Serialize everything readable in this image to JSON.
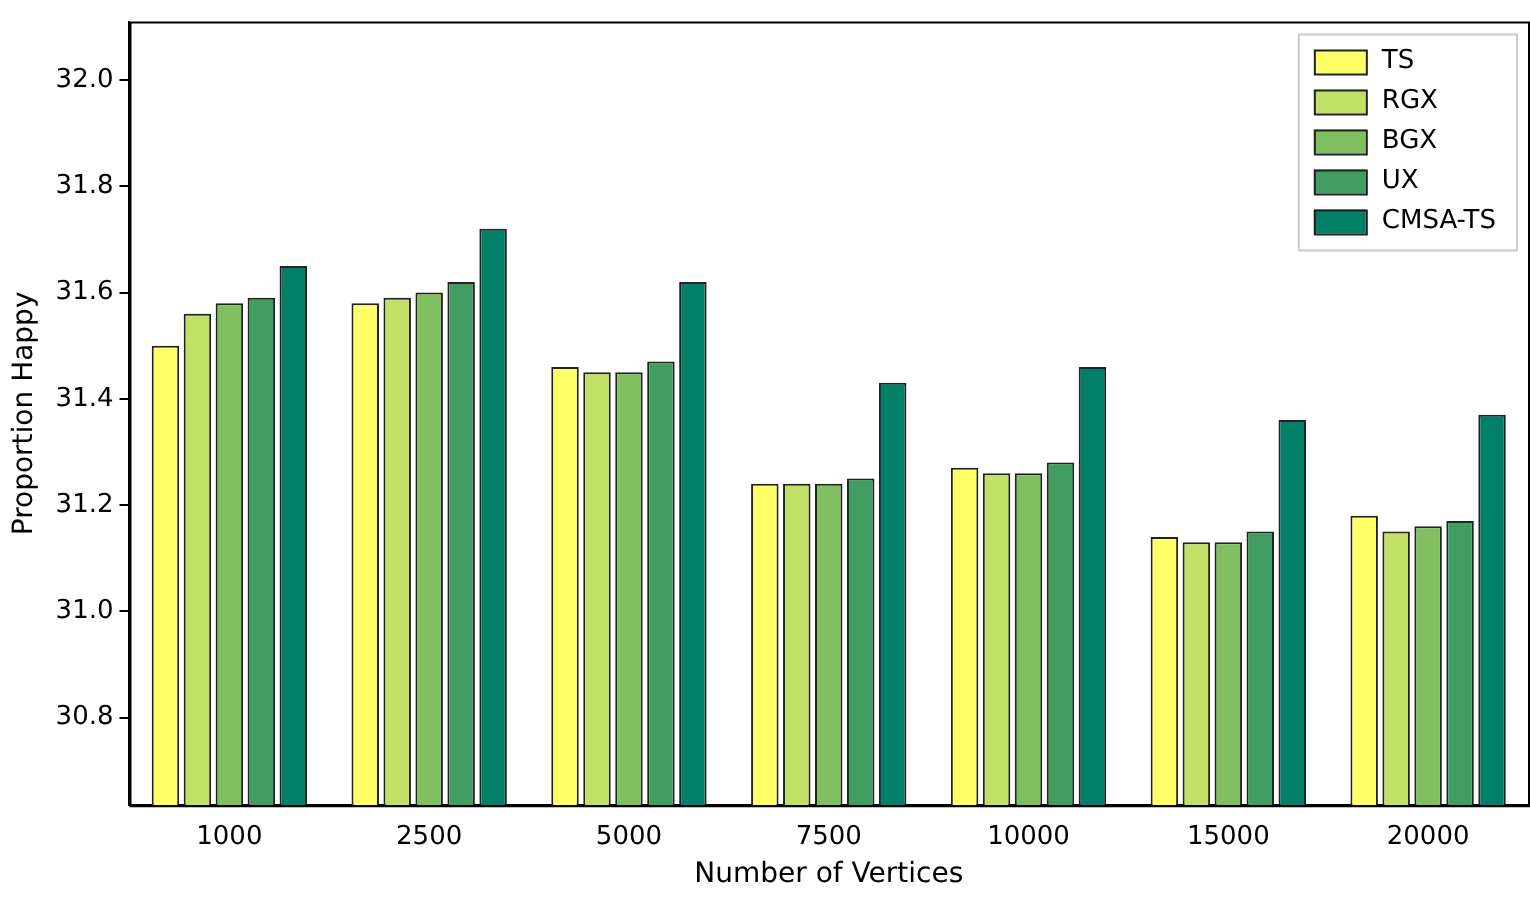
{
  "chart_data": {
    "type": "bar",
    "xlabel": "Number of Vertices",
    "ylabel": "Proportion Happy",
    "categories": [
      "1000",
      "2500",
      "5000",
      "7500",
      "10000",
      "15000",
      "20000"
    ],
    "series": [
      {
        "name": "TS",
        "color": "#ffff66",
        "values": [
          31.5,
          31.58,
          31.46,
          31.24,
          31.27,
          31.14,
          31.18
        ]
      },
      {
        "name": "RGX",
        "color": "#c2df66",
        "values": [
          31.56,
          31.59,
          31.45,
          31.24,
          31.26,
          31.13,
          31.15
        ]
      },
      {
        "name": "BGX",
        "color": "#80bf5f",
        "values": [
          31.58,
          31.6,
          31.45,
          31.24,
          31.26,
          31.13,
          31.16
        ]
      },
      {
        "name": "UX",
        "color": "#409f60",
        "values": [
          31.59,
          31.62,
          31.47,
          31.25,
          31.28,
          31.15,
          31.17
        ]
      },
      {
        "name": "CMSA-TS",
        "color": "#008066",
        "values": [
          31.65,
          31.72,
          31.62,
          31.43,
          31.46,
          31.36,
          31.37
        ]
      }
    ],
    "ylim": [
      30.635,
      32.11
    ],
    "yticks": [
      30.8,
      {
        "value": 31,
        "label": "31.0"
      },
      31.2,
      31.4,
      31.6,
      31.8,
      {
        "value": 32,
        "label": "32.0"
      }
    ],
    "grid": false,
    "legend": "top right"
  }
}
